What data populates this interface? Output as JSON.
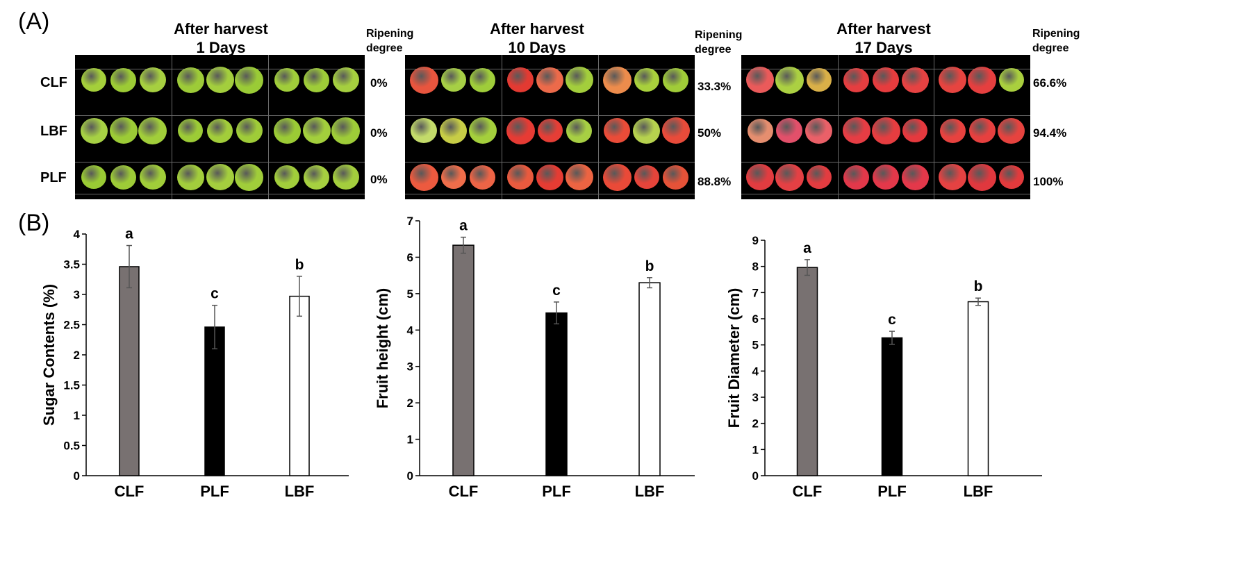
{
  "panel_labels": {
    "a": "(A)",
    "b": "(B)"
  },
  "photo_panel": {
    "ripening_header": [
      "Ripening",
      "degree"
    ],
    "row_labels": [
      "CLF",
      "LBF",
      "PLF"
    ],
    "groups": [
      {
        "title": [
          "After harvest",
          "1 Days"
        ],
        "degrees": [
          "0%",
          "0%",
          "0%"
        ],
        "fruit_colors": [
          [
            "#a4cf3a",
            "#9ccb35",
            "#a6cf40",
            "#9dcb38",
            "#a3ce3d",
            "#9acb36",
            "#a0cd3a",
            "#9ecc38",
            "#a5cf3f"
          ],
          [
            "#a6d044",
            "#9ccb36",
            "#a1ce3a",
            "#9ccb36",
            "#a2cd3a",
            "#9fcc38",
            "#9bcb35",
            "#a3cf3c",
            "#9ecc38"
          ],
          [
            "#99ca34",
            "#9dcb37",
            "#a0cd39",
            "#a2cd3c",
            "#a4ce3e",
            "#a0cd3a",
            "#a2ce3b",
            "#a6d040",
            "#a3ce3d"
          ]
        ]
      },
      {
        "title": [
          "After harvest",
          "10 Days"
        ],
        "degrees": [
          "33.3%",
          "50%",
          "88.8%"
        ],
        "fruit_colors": [
          [
            "#e8553e",
            "#a6cf45",
            "#9fcd3a",
            "#e33a32",
            "#ec6a4a",
            "#a3ce3c",
            "#ed8c4c",
            "#a8d03c",
            "#a0cc38"
          ],
          [
            "#c3db6a",
            "#c7cd46",
            "#a4cf3c",
            "#e63b34",
            "#e53e36",
            "#a7cf43",
            "#ea4c38",
            "#b6d24e",
            "#e84b3a"
          ],
          [
            "#ec5a3f",
            "#ef6d4a",
            "#ed6446",
            "#ea5a3e",
            "#e53c33",
            "#ec6442",
            "#e94a38",
            "#e5443a",
            "#e55238"
          ]
        ]
      },
      {
        "title": [
          "After harvest",
          "17 Days"
        ],
        "degrees": [
          "66.6%",
          "94.4%",
          "100%"
        ],
        "fruit_colors": [
          [
            "#ea5a5a",
            "#abd042",
            "#d9b048",
            "#e53e40",
            "#e63c3e",
            "#e64242",
            "#e64440",
            "#e53f3f",
            "#a9cf3e"
          ],
          [
            "#e58e6f",
            "#e2506a",
            "#ea6068",
            "#e63d44",
            "#e63d40",
            "#e5393e",
            "#e7423f",
            "#e6403f",
            "#e6433f"
          ],
          [
            "#e23c40",
            "#e44044",
            "#e23c40",
            "#e2384a",
            "#e3384a",
            "#e3384a",
            "#e54242",
            "#e0383e",
            "#e23a3c"
          ]
        ]
      }
    ]
  },
  "chart_data": [
    {
      "type": "bar",
      "categories": [
        "CLF",
        "PLF",
        "LBF"
      ],
      "values": [
        3.46,
        2.46,
        2.97
      ],
      "errors": [
        0.35,
        0.36,
        0.33
      ],
      "significance": [
        "a",
        "c",
        "b"
      ],
      "colors": [
        "#787171",
        "#000000",
        "#ffffff"
      ],
      "title": "",
      "xlabel": "",
      "ylabel": "Sugar Contents (%)",
      "ylim": [
        0,
        4
      ],
      "yticks": [
        0,
        0.5,
        1,
        1.5,
        2,
        2.5,
        3,
        3.5,
        4
      ],
      "ytick_labels": [
        "0",
        "0.5",
        "1",
        "1.5",
        "2",
        "2.5",
        "3",
        "3.5",
        "4"
      ],
      "grid": false
    },
    {
      "type": "bar",
      "categories": [
        "CLF",
        "PLF",
        "LBF"
      ],
      "values": [
        6.33,
        4.47,
        5.3
      ],
      "errors": [
        0.22,
        0.3,
        0.14
      ],
      "significance": [
        "a",
        "c",
        "b"
      ],
      "colors": [
        "#787171",
        "#000000",
        "#ffffff"
      ],
      "title": "",
      "xlabel": "",
      "ylabel": "Fruit height (cm)",
      "ylim": [
        0,
        7
      ],
      "yticks": [
        0,
        1,
        2,
        3,
        4,
        5,
        6,
        7
      ],
      "ytick_labels": [
        "0",
        "1",
        "2",
        "3",
        "4",
        "5",
        "6",
        "7"
      ],
      "grid": false
    },
    {
      "type": "bar",
      "categories": [
        "CLF",
        "PLF",
        "LBF"
      ],
      "values": [
        7.96,
        5.27,
        6.65
      ],
      "errors": [
        0.3,
        0.25,
        0.14
      ],
      "significance": [
        "a",
        "c",
        "b"
      ],
      "colors": [
        "#787171",
        "#000000",
        "#ffffff"
      ],
      "title": "",
      "xlabel": "",
      "ylabel": "Fruit Diameter (cm)",
      "ylim": [
        0,
        9
      ],
      "yticks": [
        0,
        1,
        2,
        3,
        4,
        5,
        6,
        7,
        8,
        9
      ],
      "ytick_labels": [
        "0",
        "1",
        "2",
        "3",
        "4",
        "5",
        "6",
        "7",
        "8",
        "9"
      ],
      "grid": false
    }
  ]
}
